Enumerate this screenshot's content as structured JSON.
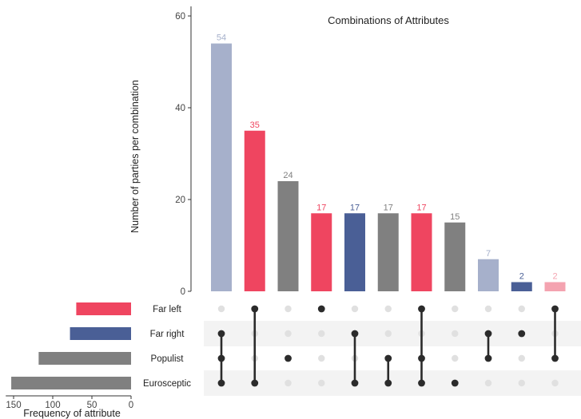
{
  "chart_data": {
    "type": "upset",
    "title": "Combinations of Attributes",
    "ylabel": "Number of parties per combination",
    "set_size_label": "Frequency of attribute",
    "ylim": [
      0,
      62
    ],
    "y_ticks": [
      0,
      20,
      40,
      60
    ],
    "set_size_ticks": [
      150,
      100,
      50,
      0
    ],
    "set_size_max": 160,
    "sets": [
      {
        "name": "Far left",
        "size": 70,
        "color": "#ef4560"
      },
      {
        "name": "Far right",
        "size": 78,
        "color": "#4a5f96"
      },
      {
        "name": "Populist",
        "size": 118,
        "color": "#808080"
      },
      {
        "name": "Eurosceptic",
        "size": 153,
        "color": "#808080"
      }
    ],
    "intersections": [
      {
        "value": 54,
        "label": "54",
        "sets": [
          "Far right",
          "Populist",
          "Eurosceptic"
        ],
        "color": "#a6b0cb",
        "label_color": "#a6b0cb"
      },
      {
        "value": 35,
        "label": "35",
        "sets": [
          "Far left",
          "Eurosceptic"
        ],
        "color": "#ef4560",
        "label_color": "#ef4560"
      },
      {
        "value": 24,
        "label": "24",
        "sets": [
          "Populist"
        ],
        "color": "#808080",
        "label_color": "#808080"
      },
      {
        "value": 17,
        "label": "17",
        "sets": [
          "Far left"
        ],
        "color": "#ef4560",
        "label_color": "#ef4560"
      },
      {
        "value": 17,
        "label": "17",
        "sets": [
          "Far right",
          "Eurosceptic"
        ],
        "color": "#4a5f96",
        "label_color": "#4a5f96"
      },
      {
        "value": 17,
        "label": "17",
        "sets": [
          "Populist",
          "Eurosceptic"
        ],
        "color": "#808080",
        "label_color": "#808080"
      },
      {
        "value": 17,
        "label": "17",
        "sets": [
          "Far left",
          "Populist",
          "Eurosceptic"
        ],
        "color": "#ef4560",
        "label_color": "#ef4560"
      },
      {
        "value": 15,
        "label": "15",
        "sets": [
          "Eurosceptic"
        ],
        "color": "#808080",
        "label_color": "#808080"
      },
      {
        "value": 7,
        "label": "7",
        "sets": [
          "Far right",
          "Populist"
        ],
        "color": "#a6b0cb",
        "label_color": "#a6b0cb"
      },
      {
        "value": 2,
        "label": "2",
        "sets": [
          "Far right"
        ],
        "color": "#4a5f96",
        "label_color": "#4a5f96"
      },
      {
        "value": 2,
        "label": "2",
        "sets": [
          "Far left",
          "Populist"
        ],
        "color": "#f4a3b0",
        "label_color": "#f4a3b0"
      }
    ],
    "grid": false
  }
}
